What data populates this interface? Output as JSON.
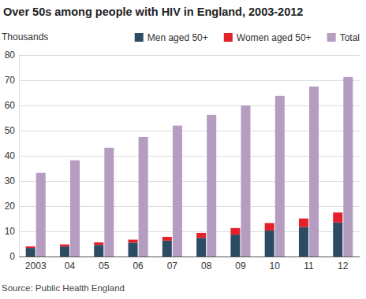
{
  "chart_data": {
    "type": "bar",
    "title": "Over 50s among people with HIV in England, 2003-2012",
    "y_label": "Thousands",
    "source": "Source: Public Health England",
    "categories": [
      "2003",
      "04",
      "05",
      "06",
      "07",
      "08",
      "09",
      "10",
      "11",
      "12"
    ],
    "series": [
      {
        "name": "Men aged 50+",
        "color": "#2b4c63",
        "stacked": true,
        "values": [
          3.4,
          4.0,
          4.6,
          5.5,
          6.3,
          7.4,
          8.7,
          10.3,
          11.7,
          13.5
        ]
      },
      {
        "name": "Women aged 50+",
        "color": "#e4202a",
        "stacked": true,
        "values": [
          0.6,
          0.8,
          1.0,
          1.2,
          1.5,
          2.0,
          2.6,
          3.0,
          3.4,
          4.0
        ]
      },
      {
        "name": "Total",
        "color": "#b59cc1",
        "values": [
          33.2,
          38.2,
          43.2,
          47.5,
          52.0,
          56.3,
          60.0,
          63.8,
          67.5,
          71.3
        ]
      }
    ],
    "ylim": [
      0,
      80
    ],
    "yticks": [
      0,
      10,
      20,
      30,
      40,
      50,
      60,
      70,
      80
    ],
    "grid": true,
    "legend": "top"
  }
}
